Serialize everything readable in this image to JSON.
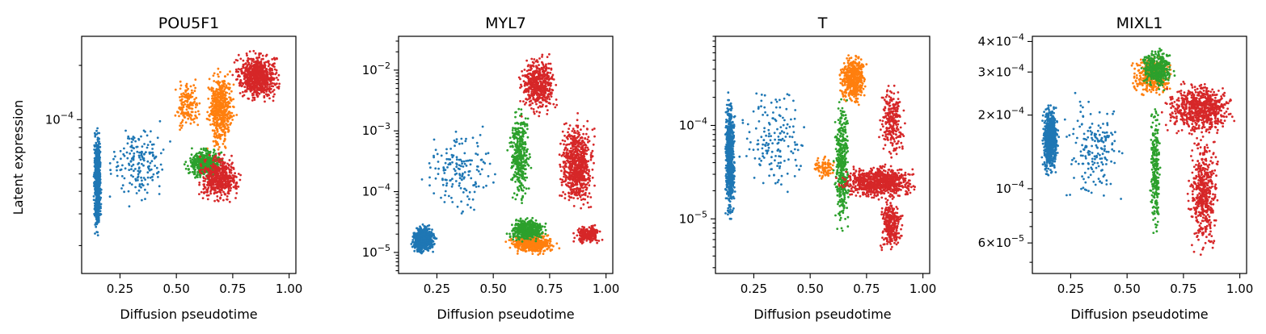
{
  "figure": {
    "y_label": "Latent expression"
  },
  "series_colors": [
    "#1f77b4",
    "#ff7f0e",
    "#2ca02c",
    "#d62728"
  ],
  "chart_data": [
    {
      "type": "scatter",
      "title": "POU5F1",
      "xlabel": "Diffusion pseudotime",
      "ylabel": "Latent expression",
      "xlim": [
        0.08,
        1.03
      ],
      "ylim": [
        1.4e-05,
        0.00029
      ],
      "yscale": "log",
      "x_ticks": [
        {
          "v": 0.25,
          "label": "0.25"
        },
        {
          "v": 0.5,
          "label": "0.50"
        },
        {
          "v": 0.75,
          "label": "0.75"
        },
        {
          "v": 1.0,
          "label": "1.00"
        }
      ],
      "y_ticks": [
        {
          "v": 0.0001,
          "base": "10",
          "exp": "−4"
        }
      ],
      "clusters": [
        {
          "series": 0,
          "x": [
            0.13,
            0.17
          ],
          "y": [
            2.1e-05,
            0.0001
          ],
          "n": 700
        },
        {
          "series": 0,
          "x": [
            0.17,
            0.5
          ],
          "y": [
            3e-05,
            0.00011
          ],
          "n": 180
        },
        {
          "series": 1,
          "x": [
            0.48,
            0.62
          ],
          "y": [
            8e-05,
            0.00018
          ],
          "n": 150
        },
        {
          "series": 1,
          "x": [
            0.62,
            0.77
          ],
          "y": [
            6.2e-05,
            0.00021
          ],
          "n": 500
        },
        {
          "series": 2,
          "x": [
            0.53,
            0.72
          ],
          "y": [
            4.5e-05,
            7.2e-05
          ],
          "n": 450
        },
        {
          "series": 3,
          "x": [
            0.58,
            0.8
          ],
          "y": [
            3.3e-05,
            6.8e-05
          ],
          "n": 500
        },
        {
          "series": 3,
          "x": [
            0.74,
            0.98
          ],
          "y": [
            0.00012,
            0.00025
          ],
          "n": 700
        }
      ]
    },
    {
      "type": "scatter",
      "title": "MYL7",
      "xlabel": "Diffusion pseudotime",
      "ylabel": "",
      "xlim": [
        0.08,
        1.03
      ],
      "ylim": [
        4.5e-06,
        0.036
      ],
      "yscale": "log",
      "x_ticks": [
        {
          "v": 0.25,
          "label": "0.25"
        },
        {
          "v": 0.5,
          "label": "0.50"
        },
        {
          "v": 0.75,
          "label": "0.75"
        },
        {
          "v": 1.0,
          "label": "1.00"
        }
      ],
      "y_ticks": [
        {
          "v": 1e-05,
          "base": "10",
          "exp": "−5"
        },
        {
          "v": 0.0001,
          "base": "10",
          "exp": "−4"
        },
        {
          "v": 0.001,
          "base": "10",
          "exp": "−3"
        },
        {
          "v": 0.01,
          "base": "10",
          "exp": "−2"
        }
      ],
      "clusters": [
        {
          "series": 0,
          "x": [
            0.13,
            0.25
          ],
          "y": [
            8.5e-06,
            3e-05
          ],
          "n": 600
        },
        {
          "series": 0,
          "x": [
            0.15,
            0.55
          ],
          "y": [
            3e-05,
            0.0015
          ],
          "n": 160
        },
        {
          "series": 1,
          "x": [
            0.55,
            0.8
          ],
          "y": [
            9e-06,
            2.2e-05
          ],
          "n": 500
        },
        {
          "series": 2,
          "x": [
            0.55,
            0.75
          ],
          "y": [
            1.4e-05,
            4e-05
          ],
          "n": 400
        },
        {
          "series": 2,
          "x": [
            0.56,
            0.67
          ],
          "y": [
            4e-05,
            0.004
          ],
          "n": 350
        },
        {
          "series": 3,
          "x": [
            0.6,
            0.8
          ],
          "y": [
            0.0015,
            0.022
          ],
          "n": 500
        },
        {
          "series": 3,
          "x": [
            0.78,
            0.96
          ],
          "y": [
            4e-05,
            0.002
          ],
          "n": 700
        },
        {
          "series": 3,
          "x": [
            0.85,
            0.99
          ],
          "y": [
            1.3e-05,
            3e-05
          ],
          "n": 200
        }
      ]
    },
    {
      "type": "scatter",
      "title": "T",
      "xlabel": "Diffusion pseudotime",
      "ylabel": "",
      "xlim": [
        0.08,
        1.03
      ],
      "ylim": [
        2.6e-06,
        0.0009
      ],
      "yscale": "log",
      "x_ticks": [
        {
          "v": 0.25,
          "label": "0.25"
        },
        {
          "v": 0.5,
          "label": "0.50"
        },
        {
          "v": 0.75,
          "label": "0.75"
        },
        {
          "v": 1.0,
          "label": "1.00"
        }
      ],
      "y_ticks": [
        {
          "v": 1e-05,
          "base": "10",
          "exp": "−5"
        },
        {
          "v": 0.0001,
          "base": "10",
          "exp": "−4"
        }
      ],
      "clusters": [
        {
          "series": 0,
          "x": [
            0.12,
            0.17
          ],
          "y": [
            8e-06,
            0.00025
          ],
          "n": 700
        },
        {
          "series": 0,
          "x": [
            0.17,
            0.5
          ],
          "y": [
            1.5e-05,
            0.00035
          ],
          "n": 160
        },
        {
          "series": 1,
          "x": [
            0.62,
            0.76
          ],
          "y": [
            0.00015,
            0.00065
          ],
          "n": 500
        },
        {
          "series": 1,
          "x": [
            0.5,
            0.62
          ],
          "y": [
            2.5e-05,
            5e-05
          ],
          "n": 80
        },
        {
          "series": 2,
          "x": [
            0.6,
            0.68
          ],
          "y": [
            6e-06,
            0.00025
          ],
          "n": 400
        },
        {
          "series": 3,
          "x": [
            0.6,
            1.0
          ],
          "y": [
            1.5e-05,
            4e-05
          ],
          "n": 800
        },
        {
          "series": 3,
          "x": [
            0.8,
            0.92
          ],
          "y": [
            4e-06,
            2e-05
          ],
          "n": 300
        },
        {
          "series": 3,
          "x": [
            0.8,
            0.93
          ],
          "y": [
            4e-05,
            0.0003
          ],
          "n": 250
        }
      ]
    },
    {
      "type": "scatter",
      "title": "MIXL1",
      "xlabel": "Diffusion pseudotime",
      "ylabel": "",
      "xlim": [
        0.08,
        1.03
      ],
      "ylim": [
        4.5e-05,
        0.00042
      ],
      "yscale": "log",
      "x_ticks": [
        {
          "v": 0.25,
          "label": "0.25"
        },
        {
          "v": 0.5,
          "label": "0.50"
        },
        {
          "v": 0.75,
          "label": "0.75"
        },
        {
          "v": 1.0,
          "label": "1.00"
        }
      ],
      "y_ticks": [
        {
          "v": 6e-05,
          "base": "6×10",
          "exp": "−5"
        },
        {
          "v": 0.0001,
          "base": "10",
          "exp": "−4"
        },
        {
          "v": 0.0002,
          "base": "2×10",
          "exp": "−4"
        },
        {
          "v": 0.0003,
          "base": "3×10",
          "exp": "−4"
        },
        {
          "v": 0.0004,
          "base": "4×10",
          "exp": "−4"
        }
      ],
      "clusters": [
        {
          "series": 0,
          "x": [
            0.12,
            0.2
          ],
          "y": [
            0.00011,
            0.00023
          ],
          "n": 700
        },
        {
          "series": 0,
          "x": [
            0.2,
            0.5
          ],
          "y": [
            8e-05,
            0.00026
          ],
          "n": 180
        },
        {
          "series": 1,
          "x": [
            0.5,
            0.72
          ],
          "y": [
            0.00023,
            0.00036
          ],
          "n": 350
        },
        {
          "series": 2,
          "x": [
            0.55,
            0.72
          ],
          "y": [
            0.00025,
            0.00038
          ],
          "n": 400
        },
        {
          "series": 2,
          "x": [
            0.6,
            0.65
          ],
          "y": [
            5.8e-05,
            0.00025
          ],
          "n": 250
        },
        {
          "series": 3,
          "x": [
            0.65,
            1.0
          ],
          "y": [
            0.00016,
            0.00028
          ],
          "n": 700
        },
        {
          "series": 3,
          "x": [
            0.76,
            0.92
          ],
          "y": [
            5e-05,
            0.00018
          ],
          "n": 500
        }
      ]
    }
  ]
}
